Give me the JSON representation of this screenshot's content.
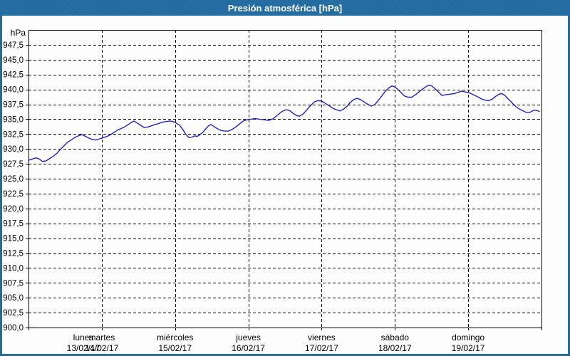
{
  "window": {
    "title": "Presión atmosférica [hPa]"
  },
  "theme": {
    "titlebar_color": "#1e6ba3",
    "frame_border_color": "#2a6b93",
    "background_color": "#fcfdfc",
    "grid_color": "#000000",
    "text_color": "#000000",
    "line_color": "#2424b4"
  },
  "chart_data": {
    "type": "line",
    "title": "Presión atmosférica [hPa]",
    "unit_label": "hPa",
    "ylim": [
      900,
      950
    ],
    "ytick_step": 2.5,
    "ytick_labels": [
      "947,5",
      "945,0",
      "942,5",
      "940,0",
      "937,5",
      "935,0",
      "932,5",
      "930,0",
      "927,5",
      "925,0",
      "922,5",
      "920,0",
      "917,5",
      "915,0",
      "912,5",
      "910,0",
      "907,5",
      "905,0",
      "902,5",
      "900,0"
    ],
    "grid": "dashed-horizontal-every-2.5hPa-and-dashed-vertical-per-day",
    "legend_position": "none",
    "x_axis": {
      "range_days": [
        0,
        7
      ],
      "days": [
        {
          "name": "lunes",
          "date": "13/02/17"
        },
        {
          "name": "martes",
          "date": "14/02/17"
        },
        {
          "name": "miércoles",
          "date": "15/02/17"
        },
        {
          "name": "jueves",
          "date": "16/02/17"
        },
        {
          "name": "viernes",
          "date": "17/02/17"
        },
        {
          "name": "sábado",
          "date": "18/02/17"
        },
        {
          "name": "domingo",
          "date": "19/02/17"
        }
      ]
    },
    "series": [
      {
        "name": "Presión atmosférica [hPa]",
        "points_days_hpa": [
          [
            0.0,
            928.1
          ],
          [
            0.05,
            928.3
          ],
          [
            0.1,
            928.5
          ],
          [
            0.15,
            928.3
          ],
          [
            0.19,
            927.9
          ],
          [
            0.24,
            928.0
          ],
          [
            0.29,
            928.4
          ],
          [
            0.34,
            928.8
          ],
          [
            0.39,
            929.3
          ],
          [
            0.44,
            930.0
          ],
          [
            0.49,
            930.6
          ],
          [
            0.53,
            931.1
          ],
          [
            0.58,
            931.5
          ],
          [
            0.63,
            931.9
          ],
          [
            0.68,
            932.2
          ],
          [
            0.73,
            932.4
          ],
          [
            0.78,
            932.1
          ],
          [
            0.83,
            931.8
          ],
          [
            0.87,
            931.6
          ],
          [
            0.92,
            931.5
          ],
          [
            0.97,
            931.7
          ],
          [
            1.02,
            931.9
          ],
          [
            1.07,
            932.1
          ],
          [
            1.12,
            932.4
          ],
          [
            1.17,
            932.8
          ],
          [
            1.22,
            933.2
          ],
          [
            1.26,
            933.4
          ],
          [
            1.31,
            933.7
          ],
          [
            1.36,
            934.1
          ],
          [
            1.41,
            934.5
          ],
          [
            1.44,
            934.7
          ],
          [
            1.49,
            934.3
          ],
          [
            1.54,
            933.9
          ],
          [
            1.58,
            933.6
          ],
          [
            1.63,
            933.7
          ],
          [
            1.68,
            933.9
          ],
          [
            1.73,
            934.1
          ],
          [
            1.78,
            934.3
          ],
          [
            1.83,
            934.5
          ],
          [
            1.88,
            934.6
          ],
          [
            1.93,
            934.7
          ],
          [
            1.97,
            934.6
          ],
          [
            2.01,
            934.4
          ],
          [
            2.06,
            934.0
          ],
          [
            2.11,
            933.2
          ],
          [
            2.15,
            932.4
          ],
          [
            2.19,
            931.9
          ],
          [
            2.23,
            932.0
          ],
          [
            2.27,
            932.2
          ],
          [
            2.3,
            932.1
          ],
          [
            2.34,
            932.4
          ],
          [
            2.38,
            932.8
          ],
          [
            2.42,
            933.4
          ],
          [
            2.46,
            933.9
          ],
          [
            2.49,
            934.1
          ],
          [
            2.54,
            933.7
          ],
          [
            2.59,
            933.3
          ],
          [
            2.63,
            933.1
          ],
          [
            2.68,
            933.0
          ],
          [
            2.73,
            933.0
          ],
          [
            2.78,
            933.3
          ],
          [
            2.83,
            933.7
          ],
          [
            2.88,
            934.2
          ],
          [
            2.93,
            934.7
          ],
          [
            2.98,
            934.9
          ],
          [
            3.03,
            935.0
          ],
          [
            3.09,
            935.1
          ],
          [
            3.15,
            935.0
          ],
          [
            3.21,
            934.9
          ],
          [
            3.28,
            934.8
          ],
          [
            3.34,
            935.1
          ],
          [
            3.4,
            935.7
          ],
          [
            3.46,
            936.3
          ],
          [
            3.52,
            936.6
          ],
          [
            3.57,
            936.4
          ],
          [
            3.62,
            935.9
          ],
          [
            3.66,
            935.6
          ],
          [
            3.7,
            935.5
          ],
          [
            3.75,
            935.9
          ],
          [
            3.8,
            936.6
          ],
          [
            3.85,
            937.3
          ],
          [
            3.9,
            937.9
          ],
          [
            3.94,
            938.1
          ],
          [
            3.98,
            938.1
          ],
          [
            4.02,
            937.9
          ],
          [
            4.06,
            937.6
          ],
          [
            4.11,
            937.2
          ],
          [
            4.16,
            936.8
          ],
          [
            4.2,
            936.6
          ],
          [
            4.25,
            936.4
          ],
          [
            4.3,
            936.7
          ],
          [
            4.35,
            937.2
          ],
          [
            4.39,
            937.8
          ],
          [
            4.44,
            938.3
          ],
          [
            4.48,
            938.5
          ],
          [
            4.53,
            938.3
          ],
          [
            4.58,
            937.9
          ],
          [
            4.63,
            937.5
          ],
          [
            4.68,
            937.2
          ],
          [
            4.73,
            937.5
          ],
          [
            4.77,
            938.1
          ],
          [
            4.82,
            938.9
          ],
          [
            4.87,
            939.7
          ],
          [
            4.92,
            940.3
          ],
          [
            4.96,
            940.6
          ],
          [
            5.0,
            940.4
          ],
          [
            5.04,
            940.0
          ],
          [
            5.09,
            939.4
          ],
          [
            5.13,
            938.9
          ],
          [
            5.18,
            938.7
          ],
          [
            5.23,
            938.7
          ],
          [
            5.28,
            939.1
          ],
          [
            5.33,
            939.6
          ],
          [
            5.38,
            940.1
          ],
          [
            5.43,
            940.5
          ],
          [
            5.46,
            940.7
          ],
          [
            5.5,
            940.6
          ],
          [
            5.55,
            940.1
          ],
          [
            5.6,
            939.5
          ],
          [
            5.64,
            939.0
          ],
          [
            5.69,
            939.1
          ],
          [
            5.75,
            939.2
          ],
          [
            5.81,
            939.3
          ],
          [
            5.86,
            939.5
          ],
          [
            5.91,
            939.7
          ],
          [
            5.95,
            939.6
          ],
          [
            6.0,
            939.5
          ],
          [
            6.04,
            939.3
          ],
          [
            6.09,
            939.0
          ],
          [
            6.14,
            938.7
          ],
          [
            6.18,
            938.4
          ],
          [
            6.23,
            938.2
          ],
          [
            6.27,
            938.1
          ],
          [
            6.32,
            938.3
          ],
          [
            6.37,
            938.8
          ],
          [
            6.42,
            939.2
          ],
          [
            6.46,
            939.3
          ],
          [
            6.5,
            939.0
          ],
          [
            6.53,
            938.6
          ],
          [
            6.57,
            938.1
          ],
          [
            6.61,
            937.6
          ],
          [
            6.65,
            937.1
          ],
          [
            6.7,
            936.7
          ],
          [
            6.75,
            936.4
          ],
          [
            6.8,
            936.1
          ],
          [
            6.85,
            936.2
          ],
          [
            6.89,
            936.5
          ],
          [
            6.93,
            936.5
          ],
          [
            6.97,
            936.3
          ]
        ]
      }
    ]
  }
}
